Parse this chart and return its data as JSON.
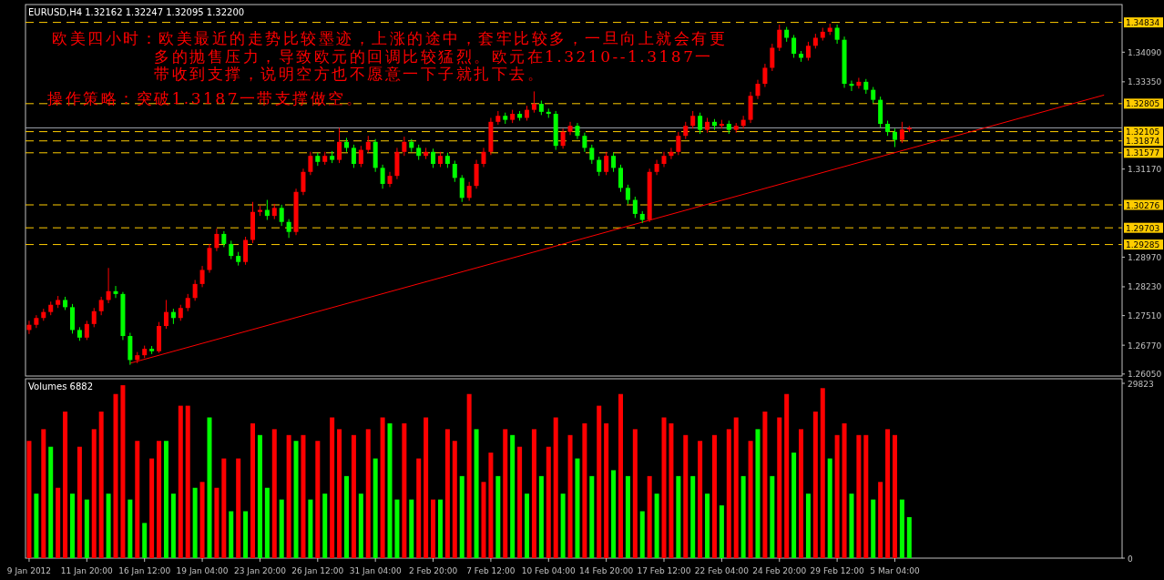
{
  "chart_data": [
    {
      "type": "candlestick",
      "title": "EURUSD,H4 1.32162 1.32247 1.32095 1.32200",
      "annotations": [
        "欧美四小时：欧美最近的走势比较墨迹，上涨的途中，套牢比较多，一旦向上就会有更多的抛售压力，导致欧元的回调比较猛烈。欧元在1.3210--1.3187一带收到支撑，说明空方也不愿意一下子就扎下去。",
        "操作策略：突破1.3187一带支撑做空。"
      ],
      "categories": [
        null,
        null,
        null,
        null,
        null,
        null,
        null,
        null,
        null,
        null,
        null,
        null,
        null,
        null,
        null,
        null,
        null,
        null,
        null,
        null,
        null,
        null,
        null,
        null,
        null,
        null,
        null,
        null,
        null,
        null,
        null,
        null,
        null,
        null,
        null,
        null,
        null,
        null,
        null,
        null,
        null,
        null,
        null,
        null,
        null,
        null,
        null,
        null,
        null,
        null,
        null,
        null,
        null,
        null,
        null,
        null,
        null,
        null,
        null,
        null,
        null,
        null,
        null,
        null,
        null,
        null,
        null,
        null,
        null,
        null,
        null,
        null,
        null,
        null,
        null,
        null,
        null,
        null,
        null,
        null,
        null,
        null,
        null,
        null,
        null,
        null,
        null,
        null,
        null,
        null,
        null,
        null,
        null,
        null,
        null,
        null,
        null,
        null,
        null,
        null,
        null,
        null,
        null,
        null,
        null,
        null,
        null,
        null,
        null,
        null,
        null,
        null,
        null,
        null,
        null,
        null,
        null,
        null,
        null,
        null,
        null,
        null,
        null,
        null,
        null,
        null,
        null,
        null,
        null,
        null,
        null,
        null,
        null,
        null,
        null,
        null,
        null,
        null,
        null,
        null,
        null,
        null,
        null,
        null,
        null,
        null,
        null,
        null,
        null,
        null,
        null,
        null
      ],
      "ohlc": [
        [
          1.2715,
          1.2738,
          1.2705,
          1.2728
        ],
        [
          1.2728,
          1.2752,
          1.272,
          1.2745
        ],
        [
          1.2745,
          1.2768,
          1.2738,
          1.276
        ],
        [
          1.276,
          1.2786,
          1.2752,
          1.2778
        ],
        [
          1.2778,
          1.28,
          1.277,
          1.279
        ],
        [
          1.279,
          1.2798,
          1.2765,
          1.2772
        ],
        [
          1.2772,
          1.278,
          1.2706,
          1.2715
        ],
        [
          1.2715,
          1.2722,
          1.2688,
          1.2696
        ],
        [
          1.2696,
          1.2738,
          1.269,
          1.273
        ],
        [
          1.273,
          1.277,
          1.2722,
          1.2762
        ],
        [
          1.2762,
          1.2798,
          1.2752,
          1.279
        ],
        [
          1.279,
          1.287,
          1.2782,
          1.2812
        ],
        [
          1.2812,
          1.2825,
          1.2795,
          1.2805
        ],
        [
          1.2805,
          1.281,
          1.269,
          1.27
        ],
        [
          1.27,
          1.2708,
          1.2628,
          1.264
        ],
        [
          1.264,
          1.266,
          1.2632,
          1.2652
        ],
        [
          1.2652,
          1.2676,
          1.2645,
          1.2668
        ],
        [
          1.2668,
          1.2675,
          1.2655,
          1.2662
        ],
        [
          1.2662,
          1.2735,
          1.2658,
          1.2725
        ],
        [
          1.2725,
          1.279,
          1.2718,
          1.276
        ],
        [
          1.276,
          1.2768,
          1.273,
          1.2745
        ],
        [
          1.2745,
          1.2778,
          1.2738,
          1.277
        ],
        [
          1.277,
          1.2805,
          1.2762,
          1.2795
        ],
        [
          1.2795,
          1.284,
          1.2788,
          1.283
        ],
        [
          1.283,
          1.2875,
          1.2822,
          1.2865
        ],
        [
          1.2865,
          1.293,
          1.2858,
          1.292
        ],
        [
          1.292,
          1.2968,
          1.2912,
          1.2955
        ],
        [
          1.2955,
          1.2962,
          1.2922,
          1.293
        ],
        [
          1.293,
          1.2938,
          1.2892,
          1.29
        ],
        [
          1.29,
          1.291,
          1.2876,
          1.2885
        ],
        [
          1.2885,
          1.2948,
          1.2878,
          1.294
        ],
        [
          1.294,
          1.3035,
          1.2932,
          1.301
        ],
        [
          1.301,
          1.3025,
          1.3,
          1.3015
        ],
        [
          1.3015,
          1.304,
          1.299,
          1.3
        ],
        [
          1.3,
          1.303,
          1.2992,
          1.302
        ],
        [
          1.302,
          1.3028,
          1.2975,
          1.2985
        ],
        [
          1.2985,
          1.2992,
          1.2945,
          1.296
        ],
        [
          1.296,
          1.3068,
          1.2952,
          1.306
        ],
        [
          1.306,
          1.3118,
          1.3052,
          1.311
        ],
        [
          1.311,
          1.316,
          1.3102,
          1.315
        ],
        [
          1.315,
          1.3158,
          1.3125,
          1.3135
        ],
        [
          1.3135,
          1.316,
          1.3128,
          1.315
        ],
        [
          1.315,
          1.3162,
          1.3132,
          1.314
        ],
        [
          1.314,
          1.322,
          1.3132,
          1.3185
        ],
        [
          1.3185,
          1.3195,
          1.316,
          1.317
        ],
        [
          1.317,
          1.3178,
          1.312,
          1.313
        ],
        [
          1.313,
          1.3175,
          1.3122,
          1.3165
        ],
        [
          1.3165,
          1.32,
          1.3158,
          1.3185
        ],
        [
          1.3185,
          1.3192,
          1.311,
          1.312
        ],
        [
          1.312,
          1.3128,
          1.3068,
          1.308
        ],
        [
          1.308,
          1.311,
          1.3072,
          1.31
        ],
        [
          1.31,
          1.317,
          1.3092,
          1.316
        ],
        [
          1.316,
          1.3198,
          1.315,
          1.3185
        ],
        [
          1.3185,
          1.3192,
          1.316,
          1.317
        ],
        [
          1.317,
          1.3178,
          1.314,
          1.315
        ],
        [
          1.315,
          1.317,
          1.3142,
          1.316
        ],
        [
          1.316,
          1.3168,
          1.312,
          1.313
        ],
        [
          1.313,
          1.316,
          1.3122,
          1.315
        ],
        [
          1.315,
          1.3158,
          1.312,
          1.313
        ],
        [
          1.313,
          1.3138,
          1.3085,
          1.3095
        ],
        [
          1.3095,
          1.3102,
          1.3035,
          1.3045
        ],
        [
          1.3045,
          1.3085,
          1.3038,
          1.3075
        ],
        [
          1.3075,
          1.314,
          1.3068,
          1.313
        ],
        [
          1.313,
          1.317,
          1.3122,
          1.316
        ],
        [
          1.316,
          1.3245,
          1.3152,
          1.3235
        ],
        [
          1.3235,
          1.3262,
          1.3228,
          1.325
        ],
        [
          1.325,
          1.3258,
          1.323,
          1.324
        ],
        [
          1.324,
          1.3265,
          1.3232,
          1.3255
        ],
        [
          1.3255,
          1.3262,
          1.3238,
          1.3245
        ],
        [
          1.3245,
          1.3275,
          1.3238,
          1.3265
        ],
        [
          1.3265,
          1.3311,
          1.3258,
          1.328
        ],
        [
          1.328,
          1.3288,
          1.3252,
          1.326
        ],
        [
          1.326,
          1.3268,
          1.3245,
          1.3255
        ],
        [
          1.3255,
          1.3262,
          1.3165,
          1.3175
        ],
        [
          1.3175,
          1.3218,
          1.3168,
          1.321
        ],
        [
          1.321,
          1.3235,
          1.3202,
          1.3225
        ],
        [
          1.3225,
          1.3232,
          1.3192,
          1.32
        ],
        [
          1.32,
          1.3208,
          1.316,
          1.317
        ],
        [
          1.317,
          1.3178,
          1.313,
          1.314
        ],
        [
          1.314,
          1.3148,
          1.31,
          1.311
        ],
        [
          1.311,
          1.316,
          1.3102,
          1.315
        ],
        [
          1.315,
          1.3158,
          1.311,
          1.312
        ],
        [
          1.312,
          1.3128,
          1.306,
          1.307
        ],
        [
          1.307,
          1.3078,
          1.303,
          1.304
        ],
        [
          1.304,
          1.3048,
          1.2995,
          1.3005
        ],
        [
          1.3005,
          1.3012,
          1.2982,
          1.299
        ],
        [
          1.299,
          1.3118,
          1.2985,
          1.311
        ],
        [
          1.311,
          1.314,
          1.3102,
          1.313
        ],
        [
          1.313,
          1.316,
          1.3122,
          1.315
        ],
        [
          1.315,
          1.317,
          1.3142,
          1.316
        ],
        [
          1.316,
          1.321,
          1.3152,
          1.32
        ],
        [
          1.32,
          1.3235,
          1.3192,
          1.3225
        ],
        [
          1.3225,
          1.3262,
          1.3218,
          1.325
        ],
        [
          1.325,
          1.3258,
          1.3205,
          1.3215
        ],
        [
          1.3215,
          1.3245,
          1.3208,
          1.3235
        ],
        [
          1.3235,
          1.3242,
          1.3215,
          1.3225
        ],
        [
          1.3225,
          1.324,
          1.3218,
          1.323
        ],
        [
          1.323,
          1.3238,
          1.3205,
          1.3215
        ],
        [
          1.3215,
          1.3232,
          1.3208,
          1.3225
        ],
        [
          1.3225,
          1.325,
          1.3218,
          1.324
        ],
        [
          1.324,
          1.331,
          1.3232,
          1.33
        ],
        [
          1.33,
          1.334,
          1.3292,
          1.333
        ],
        [
          1.333,
          1.338,
          1.3322,
          1.337
        ],
        [
          1.337,
          1.343,
          1.3362,
          1.342
        ],
        [
          1.342,
          1.3478,
          1.3412,
          1.3465
        ],
        [
          1.3465,
          1.3472,
          1.3435,
          1.3445
        ],
        [
          1.3445,
          1.3452,
          1.3395,
          1.3405
        ],
        [
          1.3405,
          1.3412,
          1.3385,
          1.3395
        ],
        [
          1.3395,
          1.3435,
          1.3388,
          1.3425
        ],
        [
          1.3425,
          1.3455,
          1.3418,
          1.3445
        ],
        [
          1.3445,
          1.347,
          1.3438,
          1.346
        ],
        [
          1.346,
          1.348,
          1.3452,
          1.347
        ],
        [
          1.347,
          1.3478,
          1.343,
          1.344
        ],
        [
          1.344,
          1.3448,
          1.332,
          1.333
        ],
        [
          1.333,
          1.3338,
          1.3312,
          1.3325
        ],
        [
          1.3325,
          1.3345,
          1.3318,
          1.3335
        ],
        [
          1.3335,
          1.3342,
          1.3305,
          1.3315
        ],
        [
          1.3315,
          1.3322,
          1.3282,
          1.329
        ],
        [
          1.329,
          1.3298,
          1.322,
          1.323
        ],
        [
          1.323,
          1.3238,
          1.32,
          1.321
        ],
        [
          1.321,
          1.3218,
          1.3172,
          1.319
        ],
        [
          1.319,
          1.3235,
          1.3182,
          1.3216
        ],
        [
          1.32162,
          1.32247,
          1.32095,
          1.322
        ],
        null,
        null,
        null,
        null,
        null,
        null,
        null,
        null,
        null,
        null,
        null,
        null,
        null,
        null,
        null,
        null,
        null,
        null,
        null,
        null,
        null,
        null,
        null,
        null,
        null,
        null,
        null,
        null,
        null
      ],
      "series": [
        {
          "type": "line",
          "color": "#ff0000",
          "values": [
            null,
            null,
            null,
            null,
            null,
            null,
            null,
            null,
            null,
            null,
            null,
            null,
            null,
            null,
            1.2632,
            null,
            null,
            null,
            null,
            null,
            null,
            null,
            null,
            null,
            null,
            null,
            null,
            null,
            null,
            null,
            null,
            null,
            null,
            null,
            null,
            null,
            null,
            null,
            null,
            null,
            null,
            null,
            null,
            null,
            null,
            null,
            null,
            null,
            null,
            null,
            null,
            null,
            null,
            null,
            null,
            null,
            null,
            null,
            null,
            null,
            null,
            null,
            null,
            null,
            null,
            null,
            null,
            null,
            null,
            null,
            null,
            null,
            null,
            null,
            null,
            null,
            null,
            null,
            null,
            null,
            null,
            null,
            null,
            null,
            null,
            null,
            null,
            null,
            null,
            null,
            null,
            null,
            null,
            null,
            null,
            null,
            null,
            null,
            null,
            null,
            null,
            null,
            null,
            null,
            null,
            null,
            null,
            null,
            null,
            null,
            null,
            null,
            null,
            null,
            null,
            null,
            null,
            null,
            null,
            null,
            null,
            null,
            null,
            null,
            null,
            null,
            null,
            null,
            null,
            null,
            null,
            null,
            null,
            null,
            null,
            null,
            null,
            null,
            null,
            null,
            null,
            null,
            null,
            null,
            null,
            null,
            null,
            null,
            null,
            1.3302,
            null,
            null
          ]
        }
      ],
      "ylim": [
        1.26,
        1.3528
      ],
      "yticks": [
        {
          "value": 1.2605,
          "label": "1.26050"
        },
        {
          "value": 1.2677,
          "label": "1.26770"
        },
        {
          "value": 1.2751,
          "label": "1.27510"
        },
        {
          "value": 1.2823,
          "label": "1.28230"
        },
        {
          "value": 1.2897,
          "label": "1.28970"
        },
        {
          "value": 1.3117,
          "label": "1.31170"
        },
        {
          "value": 1.3335,
          "label": "1.33350"
        },
        {
          "value": 1.3409,
          "label": "1.34090"
        }
      ],
      "tick_labels": "y",
      "ref_lines": [
        {
          "axis": "y",
          "value": 1.322,
          "color": "#9fa4ae",
          "line_style": "solid"
        },
        {
          "axis": "y",
          "value": 1.34834,
          "label": "1.34834",
          "color": "#ffcc00",
          "line_style": "dashed"
        },
        {
          "axis": "y",
          "value": 1.32805,
          "label": "1.32805",
          "color": "#ffcc00",
          "line_style": "dashed"
        },
        {
          "axis": "y",
          "value": 1.32105,
          "label": "1.32105",
          "color": "#ffcc00",
          "line_style": "dashed"
        },
        {
          "axis": "y",
          "value": 1.31874,
          "label": "1.31874",
          "color": "#ffcc00",
          "line_style": "dashed"
        },
        {
          "axis": "y",
          "value": 1.31577,
          "label": "1.31577",
          "color": "#ffcc00",
          "line_style": "dashed"
        },
        {
          "axis": "y",
          "value": 1.30276,
          "label": "1.30276",
          "color": "#ffcc00",
          "line_style": "dashed"
        },
        {
          "axis": "y",
          "value": 1.29703,
          "label": "1.29703",
          "color": "#ffcc00",
          "line_style": "dashed"
        },
        {
          "axis": "y",
          "value": 1.29285,
          "label": "1.29285",
          "color": "#ffcc00",
          "line_style": "dashed"
        }
      ]
    },
    {
      "type": "bar",
      "title": "Volumes 6882",
      "categories": [
        "9 Jan 2012",
        null,
        null,
        null,
        null,
        null,
        null,
        null,
        "11 Jan 20:00",
        null,
        null,
        null,
        null,
        null,
        null,
        null,
        "16 Jan 12:00",
        null,
        null,
        null,
        null,
        null,
        null,
        null,
        "19 Jan 04:00",
        null,
        null,
        null,
        null,
        null,
        null,
        null,
        "23 Jan 20:00",
        null,
        null,
        null,
        null,
        null,
        null,
        null,
        "26 Jan 12:00",
        null,
        null,
        null,
        null,
        null,
        null,
        null,
        "31 Jan 04:00",
        null,
        null,
        null,
        null,
        null,
        null,
        null,
        "2 Feb 20:00",
        null,
        null,
        null,
        null,
        null,
        null,
        null,
        "7 Feb 12:00",
        null,
        null,
        null,
        null,
        null,
        null,
        null,
        "10 Feb 04:00",
        null,
        null,
        null,
        null,
        null,
        null,
        null,
        "14 Feb 20:00",
        null,
        null,
        null,
        null,
        null,
        null,
        null,
        "17 Feb 12:00",
        null,
        null,
        null,
        null,
        null,
        null,
        null,
        "22 Feb 04:00",
        null,
        null,
        null,
        null,
        null,
        null,
        null,
        "24 Feb 20:00",
        null,
        null,
        null,
        null,
        null,
        null,
        null,
        "29 Feb 12:00",
        null,
        null,
        null,
        null,
        null,
        null,
        null,
        "5 Mar 04:00",
        null,
        null,
        null,
        null,
        null,
        null,
        null,
        null,
        null,
        null,
        null,
        null,
        null,
        null,
        null,
        null,
        null,
        null,
        null,
        null,
        null,
        null,
        null,
        null,
        null,
        null,
        null,
        null,
        null,
        null,
        null
      ],
      "values": [
        20000,
        11000,
        22000,
        19000,
        12000,
        25000,
        11000,
        19000,
        10000,
        22000,
        25000,
        11000,
        28000,
        29500,
        10000,
        20000,
        6000,
        17000,
        20000,
        20000,
        11000,
        26000,
        26000,
        12000,
        13000,
        24000,
        12000,
        17000,
        8000,
        17000,
        8000,
        23000,
        21000,
        12000,
        22000,
        10000,
        21000,
        20000,
        21000,
        10000,
        20000,
        11000,
        24000,
        22000,
        14000,
        21000,
        11000,
        22000,
        17000,
        24000,
        23000,
        10000,
        23000,
        10000,
        17000,
        24000,
        10000,
        10000,
        22000,
        20000,
        14000,
        28000,
        22000,
        13000,
        18000,
        14000,
        22000,
        21000,
        19000,
        11000,
        22000,
        14000,
        19000,
        24000,
        11000,
        21000,
        17000,
        23000,
        14000,
        26000,
        23000,
        15000,
        28000,
        14000,
        22000,
        8000,
        14000,
        11000,
        24000,
        23000,
        14000,
        21000,
        14000,
        20000,
        11000,
        21000,
        9000,
        22000,
        24000,
        14000,
        20000,
        22000,
        25000,
        14000,
        24000,
        28000,
        18000,
        22000,
        11000,
        25000,
        29000,
        17000,
        21000,
        23000,
        11000,
        21000,
        21000,
        10000,
        13000,
        22000,
        21000,
        10000,
        7000,
        null,
        null,
        null,
        null,
        null,
        null,
        null,
        null,
        null,
        null,
        null,
        null,
        null,
        null,
        null,
        null,
        null,
        null,
        null,
        null,
        null,
        null,
        null,
        null,
        null,
        null,
        null,
        null,
        null
      ],
      "colors": [
        "#ff0000",
        "#00ff00",
        "#ff0000",
        "#00ff00",
        "#ff0000",
        "#ff0000",
        "#00ff00",
        "#ff0000",
        "#00ff00",
        "#ff0000",
        "#ff0000",
        "#00ff00",
        "#ff0000",
        "#ff0000",
        "#00ff00",
        "#ff0000",
        "#00ff00",
        "#ff0000",
        "#ff0000",
        "#00ff00",
        "#00ff00",
        "#ff0000",
        "#ff0000",
        "#00ff00",
        "#ff0000",
        "#00ff00",
        "#ff0000",
        "#ff0000",
        "#00ff00",
        "#ff0000",
        "#00ff00",
        "#ff0000",
        "#00ff00",
        "#00ff00",
        "#ff0000",
        "#00ff00",
        "#ff0000",
        "#00ff00",
        "#ff0000",
        "#00ff00",
        "#ff0000",
        "#00ff00",
        "#ff0000",
        "#ff0000",
        "#00ff00",
        "#ff0000",
        "#00ff00",
        "#ff0000",
        "#00ff00",
        "#ff0000",
        "#00ff00",
        "#00ff00",
        "#ff0000",
        "#00ff00",
        "#ff0000",
        "#ff0000",
        "#ff0000",
        "#00ff00",
        "#ff0000",
        "#ff0000",
        "#00ff00",
        "#ff0000",
        "#00ff00",
        "#ff0000",
        "#ff0000",
        "#00ff00",
        "#ff0000",
        "#00ff00",
        "#ff0000",
        "#00ff00",
        "#ff0000",
        "#00ff00",
        "#ff0000",
        "#ff0000",
        "#00ff00",
        "#ff0000",
        "#00ff00",
        "#ff0000",
        "#00ff00",
        "#ff0000",
        "#ff0000",
        "#00ff00",
        "#ff0000",
        "#00ff00",
        "#ff0000",
        "#00ff00",
        "#ff0000",
        "#00ff00",
        "#ff0000",
        "#ff0000",
        "#00ff00",
        "#ff0000",
        "#00ff00",
        "#ff0000",
        "#00ff00",
        "#ff0000",
        "#00ff00",
        "#ff0000",
        "#ff0000",
        "#00ff00",
        "#ff0000",
        "#00ff00",
        "#ff0000",
        "#00ff00",
        "#ff0000",
        "#ff0000",
        "#00ff00",
        "#ff0000",
        "#00ff00",
        "#ff0000",
        "#ff0000",
        "#00ff00",
        "#ff0000",
        "#ff0000",
        "#00ff00",
        "#ff0000",
        "#ff0000",
        "#00ff00",
        "#ff0000",
        "#ff0000",
        "#ff0000",
        "#00ff00",
        "#00ff00",
        null,
        null,
        null,
        null,
        null,
        null,
        null,
        null,
        null,
        null,
        null,
        null,
        null,
        null,
        null,
        null,
        null,
        null,
        null,
        null,
        null,
        null,
        null,
        null,
        null,
        null,
        null,
        null,
        null
      ],
      "ylim": [
        0,
        30600
      ],
      "yticks": [
        0,
        29823
      ]
    }
  ]
}
